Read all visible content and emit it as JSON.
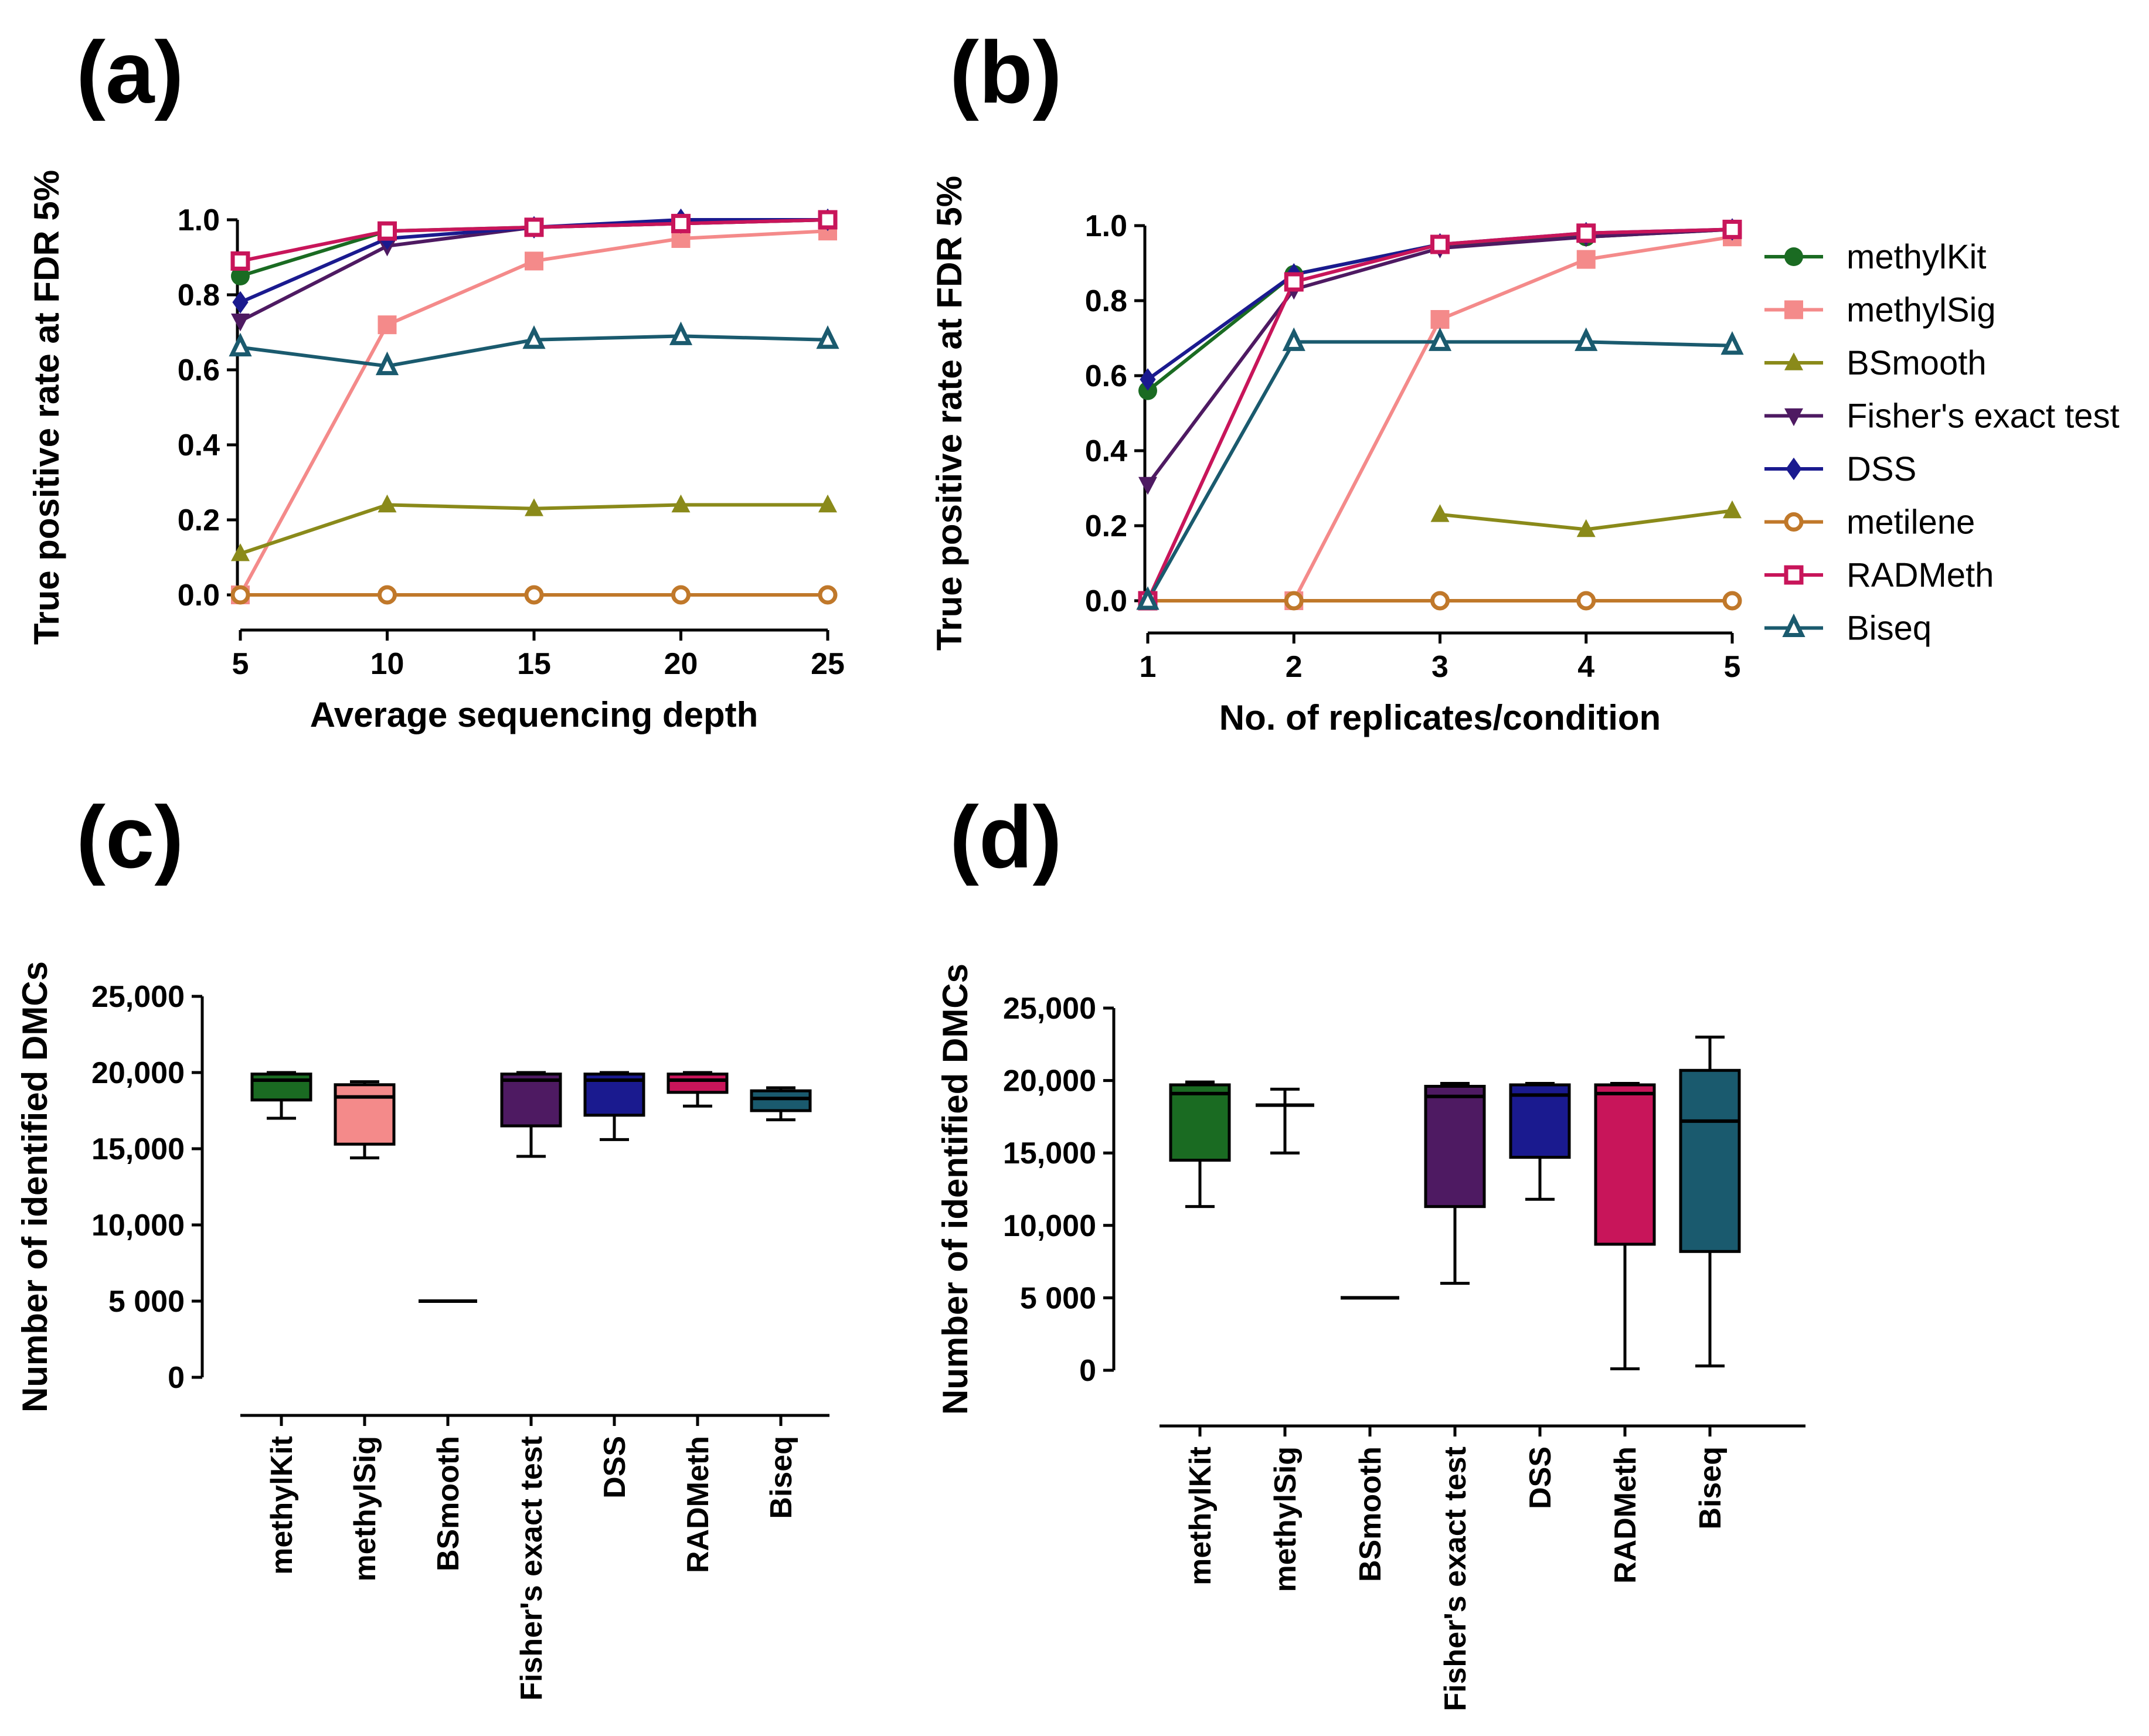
{
  "colors": {
    "methylKit": "#1a6b22",
    "methylSig": "#f48a8a",
    "BSmooth": "#8a8a1a",
    "Fishers": "#4e1a62",
    "DSS": "#1a1a8f",
    "metilene": "#c0782a",
    "RADMeth": "#c8155a",
    "Biseq": "#1a5a6e"
  },
  "panel_labels": [
    "(a)",
    "(b)",
    "(c)",
    "(d)"
  ],
  "chart_data": [
    {
      "id": "a",
      "type": "line",
      "xlabel": "Average sequencing depth",
      "ylabel": "True positive rate at FDR 5%",
      "x": [
        5,
        10,
        15,
        20,
        25
      ],
      "xlim": [
        5,
        25
      ],
      "ylim": [
        0,
        1.0
      ],
      "yticks": [
        "0.0",
        "0.2",
        "0.4",
        "0.6",
        "0.8",
        "1.0"
      ],
      "xticks": [
        "5",
        "10",
        "15",
        "20",
        "25"
      ],
      "series": [
        {
          "name": "methylKit",
          "marker": "circle",
          "values": [
            0.85,
            0.97,
            0.98,
            0.99,
            1.0
          ]
        },
        {
          "name": "methylSig",
          "marker": "square",
          "values": [
            0.0,
            0.72,
            0.89,
            0.95,
            0.97
          ]
        },
        {
          "name": "BSmooth",
          "marker": "triangle",
          "values": [
            0.11,
            0.24,
            0.23,
            0.24,
            0.24
          ]
        },
        {
          "name": "Fisher's exact test",
          "marker": "triangle-down",
          "values": [
            0.73,
            0.93,
            0.98,
            0.99,
            1.0
          ]
        },
        {
          "name": "DSS",
          "marker": "diamond",
          "values": [
            0.78,
            0.95,
            0.98,
            1.0,
            1.0
          ]
        },
        {
          "name": "metilene",
          "marker": "circle-open",
          "values": [
            0.0,
            0.0,
            0.0,
            0.0,
            0.0
          ]
        },
        {
          "name": "RADMeth",
          "marker": "square-open",
          "values": [
            0.89,
            0.97,
            0.98,
            0.99,
            1.0
          ]
        },
        {
          "name": "Biseq",
          "marker": "triangle-open",
          "values": [
            0.66,
            0.61,
            0.68,
            0.69,
            0.68
          ]
        }
      ]
    },
    {
      "id": "b",
      "type": "line",
      "xlabel": "No. of replicates/condition",
      "ylabel": "True positive rate at FDR 5%",
      "x": [
        1,
        2,
        3,
        4,
        5
      ],
      "xlim": [
        1,
        5
      ],
      "ylim": [
        0,
        1.0
      ],
      "yticks": [
        "0.0",
        "0.2",
        "0.4",
        "0.6",
        "0.8",
        "1.0"
      ],
      "xticks": [
        "1",
        "2",
        "3",
        "4",
        "5"
      ],
      "series": [
        {
          "name": "methylKit",
          "marker": "circle",
          "values": [
            0.56,
            0.87,
            0.95,
            0.97,
            0.99
          ]
        },
        {
          "name": "methylSig",
          "marker": "square",
          "values": [
            0.0,
            0.0,
            0.75,
            0.91,
            0.97
          ]
        },
        {
          "name": "BSmooth",
          "marker": "triangle",
          "values": [
            null,
            null,
            0.23,
            0.19,
            0.24
          ]
        },
        {
          "name": "Fisher's exact test",
          "marker": "triangle-down",
          "values": [
            0.31,
            0.83,
            0.94,
            0.97,
            0.99
          ]
        },
        {
          "name": "DSS",
          "marker": "diamond",
          "values": [
            0.59,
            0.87,
            0.95,
            0.98,
            0.99
          ]
        },
        {
          "name": "metilene",
          "marker": "circle-open",
          "values": [
            0.0,
            0.0,
            0.0,
            0.0,
            0.0
          ]
        },
        {
          "name": "RADMeth",
          "marker": "square-open",
          "values": [
            0.0,
            0.85,
            0.95,
            0.98,
            0.99
          ]
        },
        {
          "name": "Biseq",
          "marker": "triangle-open",
          "values": [
            0.0,
            0.69,
            0.69,
            0.69,
            0.68
          ]
        }
      ]
    },
    {
      "id": "c",
      "type": "box",
      "ylabel": "Number of identified DMCs",
      "ylim": [
        0,
        25000
      ],
      "yticks": [
        "0",
        "5 000",
        "10,000",
        "15,000",
        "20,000",
        "25,000"
      ],
      "categories": [
        "methylKit",
        "methylSig",
        "BSmooth",
        "Fisher's exact test",
        "DSS",
        "RADMeth",
        "Biseq"
      ],
      "boxes": [
        {
          "min": 17000,
          "q1": 18200,
          "median": 19500,
          "q3": 19900,
          "max": 20000
        },
        {
          "min": 14400,
          "q1": 15300,
          "median": 18400,
          "q3": 19200,
          "max": 19400
        },
        {
          "min": 5000,
          "q1": 5000,
          "median": 5000,
          "q3": 5000,
          "max": 5000
        },
        {
          "min": 14500,
          "q1": 16500,
          "median": 19500,
          "q3": 19900,
          "max": 20000
        },
        {
          "min": 15600,
          "q1": 17200,
          "median": 19500,
          "q3": 19900,
          "max": 20000
        },
        {
          "min": 17800,
          "q1": 18700,
          "median": 19500,
          "q3": 19900,
          "max": 20000
        },
        {
          "min": 16900,
          "q1": 17500,
          "median": 18300,
          "q3": 18800,
          "max": 19000
        }
      ]
    },
    {
      "id": "d",
      "type": "box",
      "ylabel": "Number of identified DMCs",
      "ylim": [
        0,
        25000
      ],
      "yticks": [
        "0",
        "5 000",
        "10,000",
        "15,000",
        "20,000",
        "25,000"
      ],
      "categories": [
        "methylKit",
        "methylSig",
        "BSmooth",
        "Fisher's exact test",
        "DSS",
        "RADMeth",
        "Biseq"
      ],
      "boxes": [
        {
          "min": 11300,
          "q1": 14500,
          "median": 19100,
          "q3": 19700,
          "max": 19900
        },
        {
          "min": 15000,
          "q1": 18300,
          "median": 18300,
          "q3": 18300,
          "max": 19400
        },
        {
          "min": 5000,
          "q1": 5000,
          "median": 5000,
          "q3": 5000,
          "max": 5000
        },
        {
          "min": 6000,
          "q1": 11300,
          "median": 18900,
          "q3": 19600,
          "max": 19800
        },
        {
          "min": 11800,
          "q1": 14700,
          "median": 19000,
          "q3": 19700,
          "max": 19800
        },
        {
          "min": 100,
          "q1": 8700,
          "median": 19100,
          "q3": 19700,
          "max": 19800
        },
        {
          "min": 300,
          "q1": 8200,
          "median": 17200,
          "q3": 20700,
          "max": 23000
        }
      ]
    }
  ]
}
